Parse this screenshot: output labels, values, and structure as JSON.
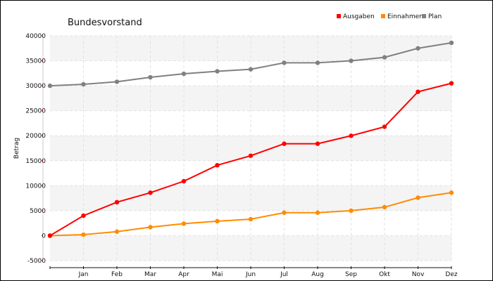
{
  "chart_data": {
    "type": "line",
    "title": "Bundesvorstand",
    "xlabel": "",
    "ylabel": "Betrag",
    "ylim": [
      -5000,
      40000
    ],
    "yticks": [
      -5000,
      0,
      5000,
      10000,
      15000,
      20000,
      25000,
      30000,
      35000,
      40000
    ],
    "categories": [
      "",
      "Jan",
      "Feb",
      "Mar",
      "Apr",
      "Mai",
      "Jun",
      "Jul",
      "Aug",
      "Sep",
      "Okt",
      "Nov",
      "Dez"
    ],
    "legend_position": "top-right",
    "series": [
      {
        "name": "Ausgaben",
        "color": "#ff0000",
        "values": [
          0,
          4000,
          6700,
          8600,
          10900,
          14100,
          16000,
          18400,
          18400,
          20000,
          21800,
          28800,
          30500
        ]
      },
      {
        "name": "Einnahmen",
        "color": "#ff8c00",
        "values": [
          0,
          200,
          800,
          1700,
          2400,
          2900,
          3300,
          4600,
          4600,
          5000,
          5700,
          7600,
          8600
        ]
      },
      {
        "name": "Plan",
        "color": "#808080",
        "values": [
          30000,
          30300,
          30800,
          31700,
          32400,
          32900,
          33300,
          34600,
          34600,
          35000,
          35700,
          37500,
          38600
        ]
      }
    ]
  }
}
